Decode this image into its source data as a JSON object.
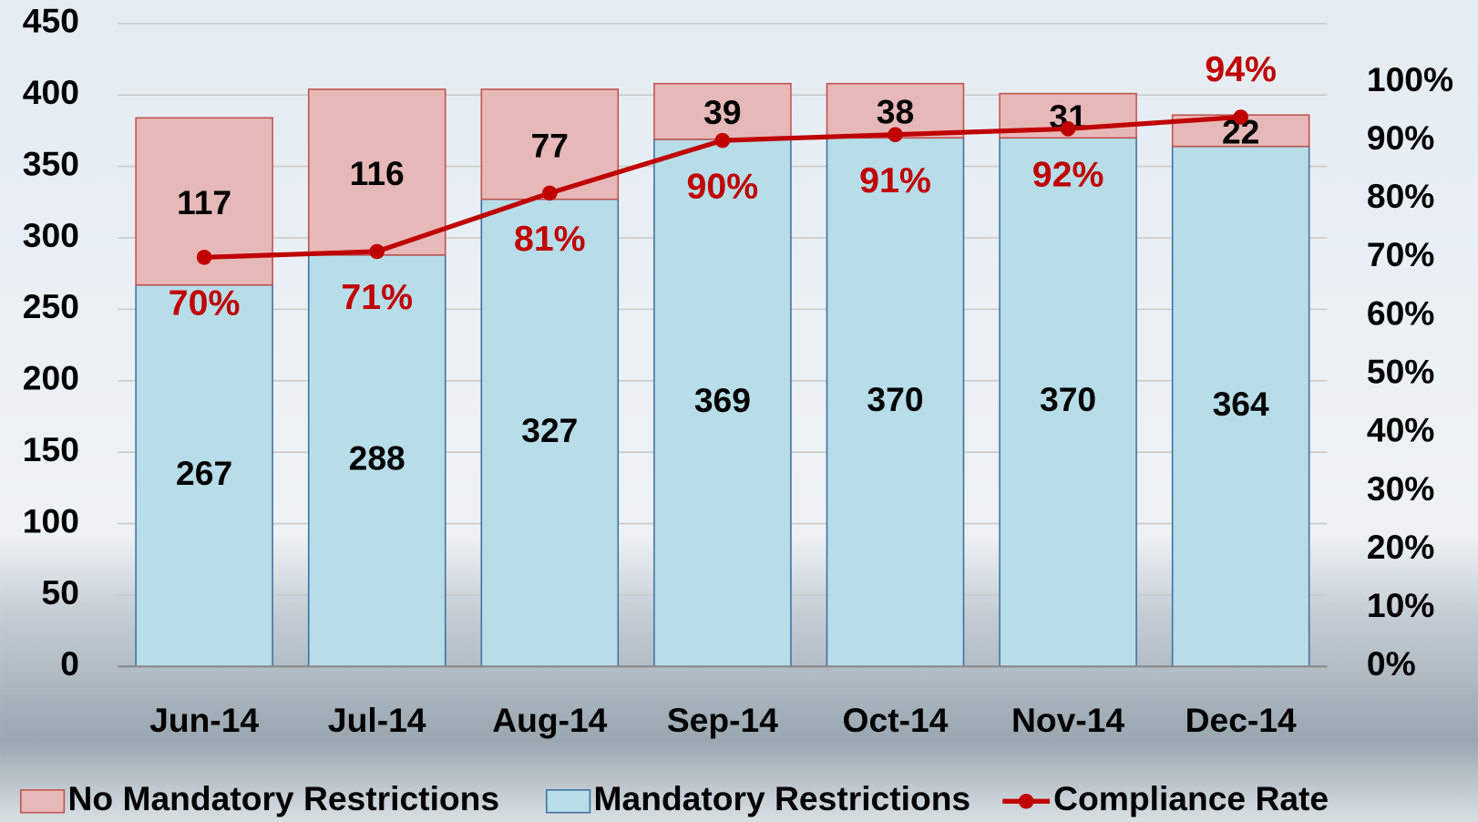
{
  "chart_data": {
    "type": "bar",
    "categories": [
      "Jun-14",
      "Jul-14",
      "Aug-14",
      "Sep-14",
      "Oct-14",
      "Nov-14",
      "Dec-14"
    ],
    "series": [
      {
        "name": "Mandatory Restrictions",
        "color": "#b7dde8",
        "values": [
          267,
          288,
          327,
          369,
          370,
          370,
          364
        ]
      },
      {
        "name": "No Mandatory Restrictions",
        "color": "#e6b9b8",
        "values": [
          117,
          116,
          77,
          39,
          38,
          31,
          22
        ]
      },
      {
        "name": "Compliance Rate",
        "type": "line",
        "axis": "y2",
        "color": "#c00000",
        "values": [
          70,
          71,
          81,
          90,
          91,
          92,
          94
        ],
        "value_labels": [
          "70%",
          "71%",
          "81%",
          "90%",
          "91%",
          "92%",
          "94%"
        ]
      }
    ],
    "ylim": [
      0,
      450
    ],
    "yticks": [
      0,
      50,
      100,
      150,
      200,
      250,
      300,
      350,
      400,
      450
    ],
    "y2lim": [
      0,
      110
    ],
    "y2ticks": [
      {
        "value": 0,
        "label": "0%"
      },
      {
        "value": 10,
        "label": "10%"
      },
      {
        "value": 20,
        "label": "20%"
      },
      {
        "value": 30,
        "label": "30%"
      },
      {
        "value": 40,
        "label": "40%"
      },
      {
        "value": 50,
        "label": "50%"
      },
      {
        "value": 60,
        "label": "60%"
      },
      {
        "value": 70,
        "label": "70%"
      },
      {
        "value": 80,
        "label": "80%"
      },
      {
        "value": 90,
        "label": "90%"
      },
      {
        "value": 100,
        "label": "100%"
      }
    ],
    "grid": true,
    "legend": "bottom"
  }
}
